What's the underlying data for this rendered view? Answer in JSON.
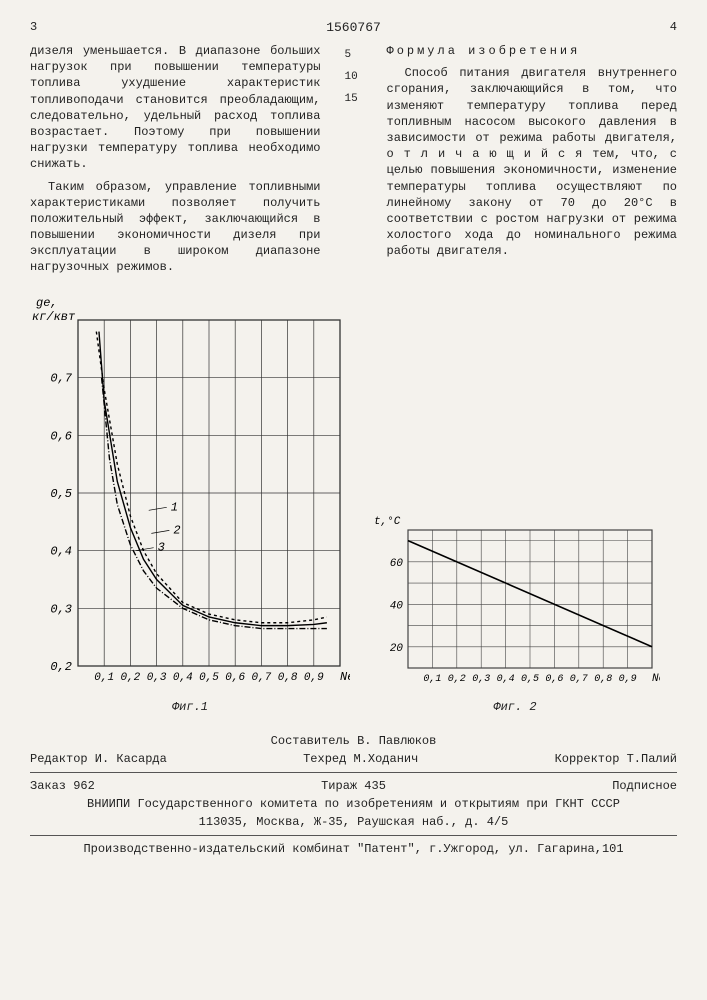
{
  "header": {
    "left_page": "3",
    "patent_no": "1560767",
    "right_page": "4"
  },
  "line_numbers": [
    "5",
    "10",
    "15"
  ],
  "left_col": [
    "дизеля уменьшается. В диапазоне больших нагрузок при повышении температуры топлива ухудшение характеристик топливоподачи становится преобладающим, следовательно, удельный расход топлива возрастает. Поэтому при повышении нагрузки температуру топлива необходимо снижать.",
    "Таким образом, управление топливными характеристиками позволяет получить положительный эффект, заключающийся в повышении экономичности дизеля при эксплуатации в широком диапазоне нагрузочных режимов."
  ],
  "right_col": {
    "title": "Формула изобретения",
    "text": "Способ питания двигателя внутреннего сгорания, заключающийся в том, что изменяют температуру топлива перед топливным насосом высокого давления в зависимости от режима работы двигателя, о т л и ч а ю щ и й с я тем, что, с целью повышения экономичности, изменение температуры топлива осуществляют по линейному закону от 70 до 20°C в соответствии с ростом нагрузки от режима холостого хода до номинального режима работы двигателя."
  },
  "fig1": {
    "caption": "Фиг.1",
    "y_label_top": "ge,",
    "y_label_unit": "кг/квт",
    "x_label": "Ne",
    "y_ticks": [
      "0,2",
      "0,3",
      "0,4",
      "0,5",
      "0,6",
      "0,7"
    ],
    "x_ticks": [
      "0,1",
      "0,2",
      "0,3",
      "0,4",
      "0,5",
      "0,6",
      "0,7",
      "0,8",
      "0,9"
    ],
    "grid_color": "#333",
    "bg": "#f4f2ed",
    "curves": {
      "1": {
        "label": "1",
        "dash": "3,3",
        "points": [
          [
            0.07,
            0.78
          ],
          [
            0.1,
            0.68
          ],
          [
            0.15,
            0.55
          ],
          [
            0.2,
            0.46
          ],
          [
            0.25,
            0.4
          ],
          [
            0.3,
            0.36
          ],
          [
            0.4,
            0.31
          ],
          [
            0.5,
            0.29
          ],
          [
            0.6,
            0.28
          ],
          [
            0.7,
            0.275
          ],
          [
            0.8,
            0.275
          ],
          [
            0.9,
            0.28
          ],
          [
            0.95,
            0.285
          ]
        ]
      },
      "2": {
        "label": "2",
        "dash": "none",
        "points": [
          [
            0.08,
            0.78
          ],
          [
            0.1,
            0.66
          ],
          [
            0.15,
            0.52
          ],
          [
            0.2,
            0.44
          ],
          [
            0.25,
            0.385
          ],
          [
            0.3,
            0.35
          ],
          [
            0.4,
            0.305
          ],
          [
            0.5,
            0.285
          ],
          [
            0.6,
            0.275
          ],
          [
            0.7,
            0.27
          ],
          [
            0.8,
            0.27
          ],
          [
            0.9,
            0.272
          ],
          [
            0.95,
            0.275
          ]
        ]
      },
      "3": {
        "label": "3",
        "dash": "6,2,1,2",
        "points": [
          [
            0.09,
            0.7
          ],
          [
            0.12,
            0.56
          ],
          [
            0.15,
            0.48
          ],
          [
            0.2,
            0.41
          ],
          [
            0.25,
            0.365
          ],
          [
            0.3,
            0.335
          ],
          [
            0.4,
            0.3
          ],
          [
            0.5,
            0.28
          ],
          [
            0.6,
            0.27
          ],
          [
            0.7,
            0.265
          ],
          [
            0.8,
            0.265
          ],
          [
            0.9,
            0.265
          ],
          [
            0.95,
            0.265
          ]
        ]
      }
    },
    "curve_labels": {
      "1": [
        0.27,
        0.47
      ],
      "2": [
        0.28,
        0.43
      ],
      "3": [
        0.22,
        0.4
      ]
    },
    "line_width": 1.4,
    "stroke": "#000",
    "xlim": [
      0.0,
      1.0
    ],
    "ylim": [
      0.2,
      0.8
    ]
  },
  "fig2": {
    "caption": "Фиг. 2",
    "y_label": "t,°C",
    "x_label": "Ne",
    "y_ticks": [
      "20",
      "40",
      "60"
    ],
    "x_ticks": [
      "0,1",
      "0,2",
      "0,3",
      "0,4",
      "0,5",
      "0,6",
      "0,7",
      "0,8",
      "0,9"
    ],
    "grid_color": "#444",
    "bg": "#f4f2ed",
    "line": {
      "points": [
        [
          0.0,
          70
        ],
        [
          1.0,
          20
        ]
      ],
      "width": 1.6,
      "stroke": "#000"
    },
    "xlim": [
      0.0,
      1.0
    ],
    "ylim": [
      10,
      75
    ]
  },
  "credits": {
    "compiler": "Составитель В. Павлюков",
    "editor": "Редактор И. Касарда",
    "tech": "Техред М.Ходанич",
    "corrector": "Корректор Т.Палий",
    "order": "Заказ 962",
    "tirazh": "Тираж 435",
    "sub": "Подписное",
    "org": "ВНИИПИ Государственного комитета по изобретениям и открытиям при ГКНТ СССР",
    "addr1": "113035, Москва, Ж-35, Раушская наб., д. 4/5",
    "addr2": "Производственно-издательский комбинат \"Патент\", г.Ужгород, ул. Гагарина,101"
  }
}
